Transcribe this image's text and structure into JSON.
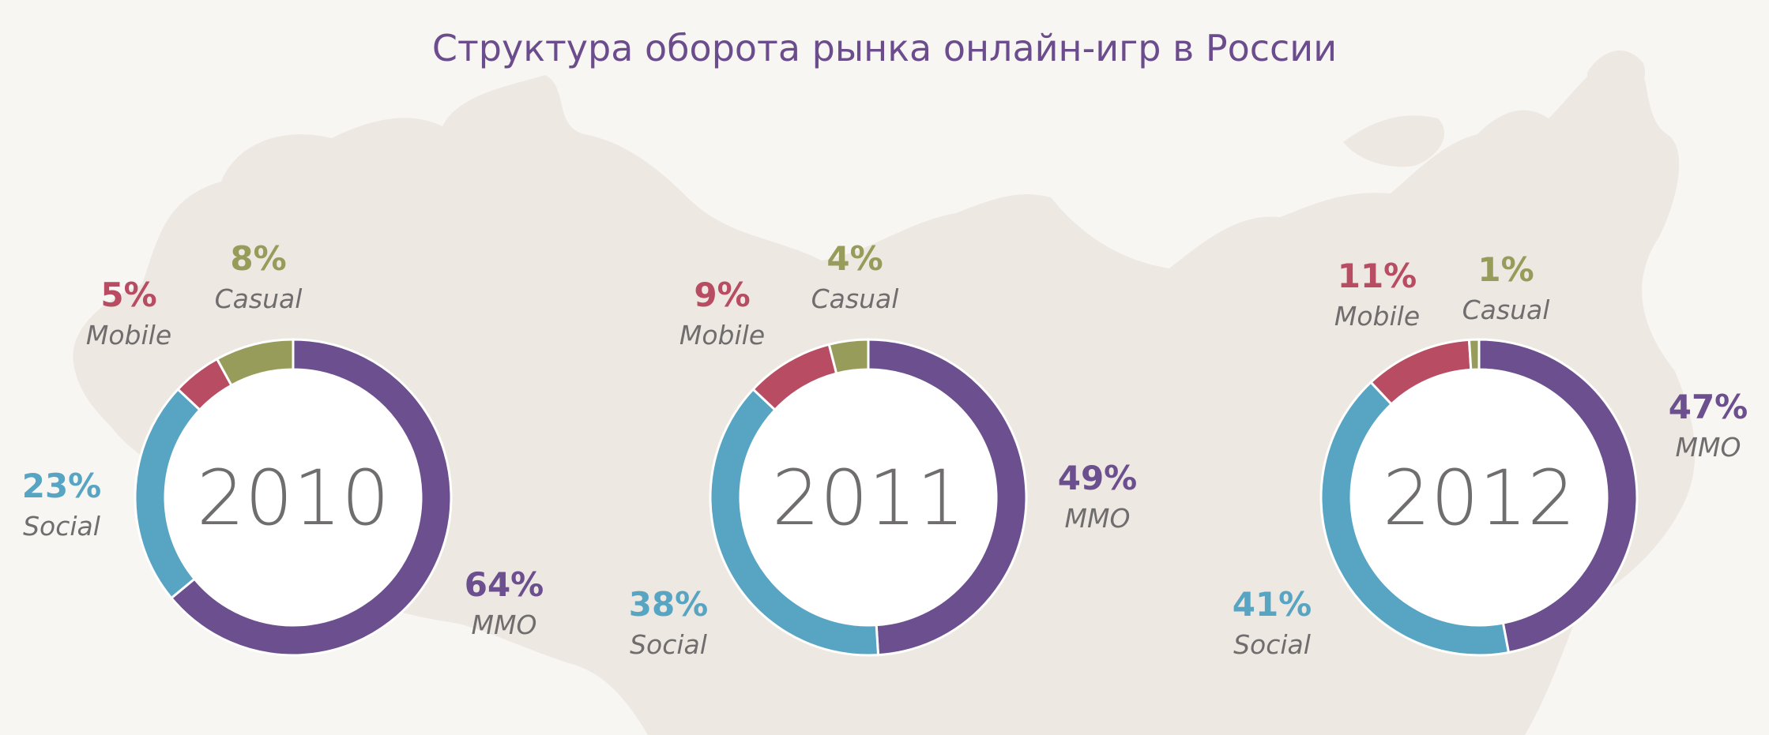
{
  "title": "Структура оборота рынка онлайн-игр в России",
  "colors": {
    "MMO": "#6b4f8e",
    "Social": "#57a5c3",
    "Mobile": "#b84c62",
    "Casual": "#979c5b",
    "year_text": "#6f6d6e",
    "map": "#ede8e1",
    "background": "#f8f6f3"
  },
  "chart_data": [
    {
      "type": "pie",
      "year": "2010",
      "segments": [
        {
          "name": "MMO",
          "value": 64,
          "label": "64%"
        },
        {
          "name": "Social",
          "value": 23,
          "label": "23%"
        },
        {
          "name": "Mobile",
          "value": 5,
          "label": "5%"
        },
        {
          "name": "Casual",
          "value": 8,
          "label": "8%"
        }
      ]
    },
    {
      "type": "pie",
      "year": "2011",
      "segments": [
        {
          "name": "MMO",
          "value": 49,
          "label": "49%"
        },
        {
          "name": "Social",
          "value": 38,
          "label": "38%"
        },
        {
          "name": "Mobile",
          "value": 9,
          "label": "9%"
        },
        {
          "name": "Casual",
          "value": 4,
          "label": "4%"
        }
      ]
    },
    {
      "type": "pie",
      "year": "2012",
      "segments": [
        {
          "name": "MMO",
          "value": 47,
          "label": "47%"
        },
        {
          "name": "Social",
          "value": 41,
          "label": "41%"
        },
        {
          "name": "Mobile",
          "value": 11,
          "label": "11%"
        },
        {
          "name": "Casual",
          "value": 1,
          "label": "1%"
        }
      ]
    }
  ]
}
